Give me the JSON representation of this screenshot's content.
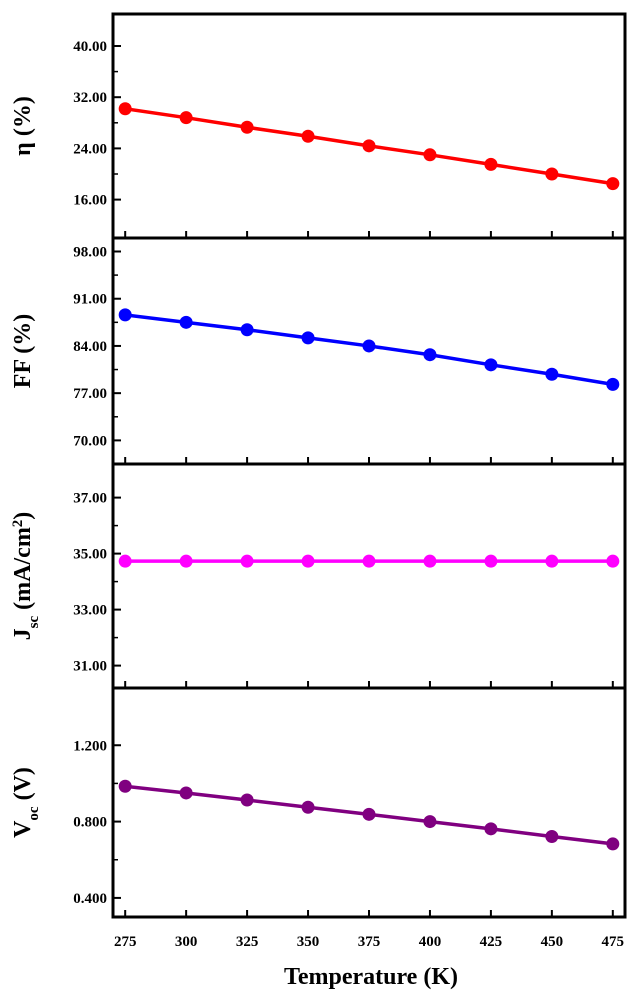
{
  "chart_data": [
    {
      "type": "line",
      "ylabel": {
        "main": "η",
        "unit": " (%)"
      },
      "x": [
        275,
        300,
        325,
        350,
        375,
        400,
        425,
        450,
        475
      ],
      "y": [
        30.2,
        28.8,
        27.3,
        25.9,
        24.4,
        23.0,
        21.5,
        20.0,
        18.5
      ],
      "yticks": [
        16,
        24,
        32,
        40
      ],
      "ytick_labels": [
        "16.00",
        "24.00",
        "32.00",
        "40.00"
      ],
      "ylim": [
        10,
        45
      ],
      "color": "#ff0000"
    },
    {
      "type": "line",
      "ylabel": {
        "main": "FF",
        "unit": " (%)"
      },
      "x": [
        275,
        300,
        325,
        350,
        375,
        400,
        425,
        450,
        475
      ],
      "y": [
        88.6,
        87.5,
        86.4,
        85.2,
        84.0,
        82.7,
        81.2,
        79.8,
        78.3
      ],
      "yticks": [
        70,
        77,
        84,
        91,
        98
      ],
      "ytick_labels": [
        "70.00",
        "77.00",
        "84.00",
        "91.00",
        "98.00"
      ],
      "ylim": [
        66.5,
        100
      ],
      "color": "#0000ff"
    },
    {
      "type": "line",
      "ylabel": {
        "main": "J",
        "sub": "sc",
        "unit": " (mA/cm",
        "sup": "2",
        "close": ")"
      },
      "x": [
        275,
        300,
        325,
        350,
        375,
        400,
        425,
        450,
        475
      ],
      "y": [
        34.73,
        34.73,
        34.73,
        34.73,
        34.73,
        34.73,
        34.73,
        34.73,
        34.73
      ],
      "yticks": [
        31,
        33,
        35,
        37
      ],
      "ytick_labels": [
        "31.00",
        "33.00",
        "35.00",
        "37.00"
      ],
      "ylim": [
        30.2,
        38.2
      ],
      "color": "#ff00ff"
    },
    {
      "type": "line",
      "ylabel": {
        "main": "V",
        "sub": "oc",
        "unit": " (V)"
      },
      "x": [
        275,
        300,
        325,
        350,
        375,
        400,
        425,
        450,
        475
      ],
      "y": [
        0.985,
        0.95,
        0.913,
        0.875,
        0.838,
        0.8,
        0.762,
        0.722,
        0.683
      ],
      "yticks": [
        0.4,
        0.8,
        1.2
      ],
      "ytick_labels": [
        "0.400",
        "0.800",
        "1.200"
      ],
      "ylim": [
        0.3,
        1.5
      ],
      "color": "#800080"
    }
  ],
  "xaxis": {
    "label": "Temperature (K)",
    "ticks": [
      275,
      300,
      325,
      350,
      375,
      400,
      425,
      450,
      475
    ],
    "tick_labels": [
      "275",
      "300",
      "325",
      "350",
      "375",
      "400",
      "425",
      "450",
      "475"
    ],
    "xlim": [
      270,
      480
    ]
  },
  "grid": false,
  "legend": "none"
}
